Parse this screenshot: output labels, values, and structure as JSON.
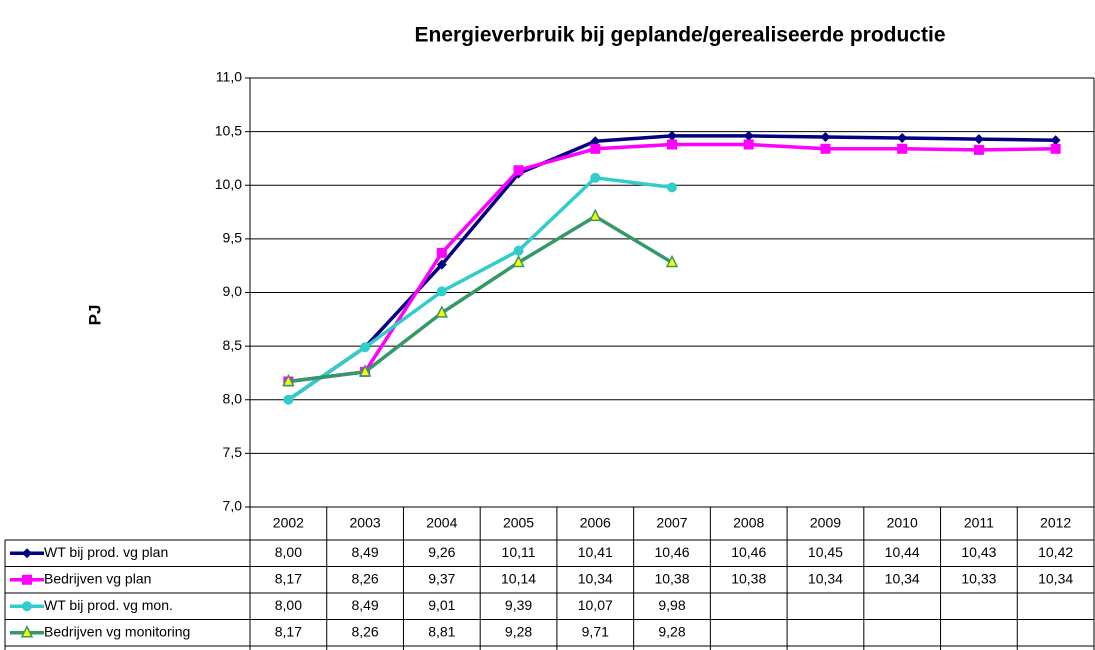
{
  "chart_data": {
    "type": "line",
    "title": "Energieverbruik bij geplande/gerealiseerde productie",
    "y_label": "PJ",
    "categories": [
      "2002",
      "2003",
      "2004",
      "2005",
      "2006",
      "2007",
      "2008",
      "2009",
      "2010",
      "2011",
      "2012"
    ],
    "ylim": [
      7,
      11
    ],
    "yticks": [
      {
        "value": 7,
        "label": "7,0"
      },
      {
        "value": 7.5,
        "label": "7,5"
      },
      {
        "value": 8,
        "label": "8,0"
      },
      {
        "value": 8.5,
        "label": "8,5"
      },
      {
        "value": 9,
        "label": "9,0"
      },
      {
        "value": 9.5,
        "label": "9,5"
      },
      {
        "value": 10,
        "label": "10,0"
      },
      {
        "value": 10.5,
        "label": "10,5"
      },
      {
        "value": 11,
        "label": "11,0"
      }
    ],
    "grid": true,
    "series": [
      {
        "name": "WT bij prod. vg plan",
        "color": "#000080",
        "marker": "diamond",
        "values": [
          8.0,
          8.49,
          9.26,
          10.11,
          10.41,
          10.46,
          10.46,
          10.45,
          10.44,
          10.43,
          10.42
        ],
        "value_labels": [
          "8,00",
          "8,49",
          "9,26",
          "10,11",
          "10,41",
          "10,46",
          "10,46",
          "10,45",
          "10,44",
          "10,43",
          "10,42"
        ]
      },
      {
        "name": "Bedrijven vg plan",
        "color": "#ff00ff",
        "marker": "square",
        "values": [
          8.17,
          8.26,
          9.37,
          10.14,
          10.34,
          10.38,
          10.38,
          10.34,
          10.34,
          10.33,
          10.34
        ],
        "value_labels": [
          "8,17",
          "8,26",
          "9,37",
          "10,14",
          "10,34",
          "10,38",
          "10,38",
          "10,34",
          "10,34",
          "10,33",
          "10,34"
        ]
      },
      {
        "name": "WT bij prod. vg mon.",
        "color": "#33cccc",
        "marker": "circle",
        "values": [
          8.0,
          8.49,
          9.01,
          9.39,
          10.07,
          9.98,
          null,
          null,
          null,
          null,
          null
        ],
        "value_labels": [
          "8,00",
          "8,49",
          "9,01",
          "9,39",
          "10,07",
          "9,98",
          null,
          null,
          null,
          null,
          null
        ]
      },
      {
        "name": "Bedrijven vg monitoring",
        "color": "#339966",
        "marker": "triangle",
        "values": [
          8.17,
          8.26,
          8.81,
          9.28,
          9.71,
          9.28,
          null,
          null,
          null,
          null,
          null
        ],
        "value_labels": [
          "8,17",
          "8,26",
          "8,81",
          "9,28",
          "9,71",
          "9,28",
          null,
          null,
          null,
          null,
          null
        ]
      }
    ]
  }
}
